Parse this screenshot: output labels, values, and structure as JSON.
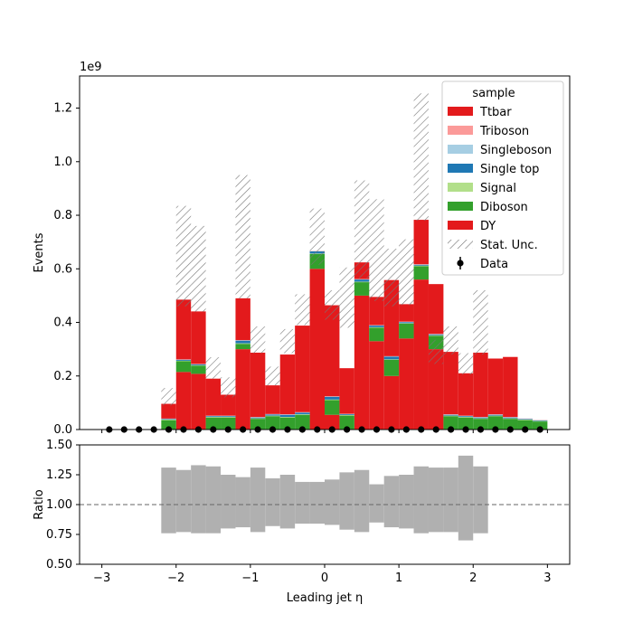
{
  "chart_data": [
    {
      "type": "bar",
      "stacked": true,
      "xlabel": "Leading jet  η",
      "ylabel": "Events",
      "offset_text": "1e9",
      "xlim": [
        -3.3,
        3.3
      ],
      "ylim": [
        0,
        1.32
      ],
      "y_scale_factor": 1000000000,
      "x_ticks": [
        -3,
        -2,
        -1,
        0,
        1,
        2,
        3
      ],
      "x_tick_labels": [
        "−3",
        "−2",
        "−1",
        "0",
        "1",
        "2",
        "3"
      ],
      "y_ticks": [
        0.0,
        0.2,
        0.4,
        0.6,
        0.8,
        1.0,
        1.2
      ],
      "y_tick_labels": [
        "0.0",
        "0.2",
        "0.4",
        "0.6",
        "0.8",
        "1.0",
        "1.2"
      ],
      "bin_edges": [
        -3.0,
        -2.8,
        -2.6,
        -2.4,
        -2.2,
        -2.0,
        -1.8,
        -1.6,
        -1.4,
        -1.2,
        -1.0,
        -0.8,
        -0.6,
        -0.4,
        -0.2,
        0.0,
        0.2,
        0.4,
        0.6,
        0.8,
        1.0,
        1.2,
        1.4,
        1.6,
        1.8,
        2.0,
        2.2,
        2.4,
        2.6,
        2.8,
        3.0
      ],
      "series": [
        {
          "name": "DY",
          "color": "#e31a1c",
          "values": [
            0,
            0,
            0,
            0,
            0,
            0.215,
            0.208,
            0,
            0,
            0.3,
            0,
            0,
            0,
            0,
            0.6,
            0.055,
            0,
            0.5,
            0.33,
            0.2,
            0.34,
            0.56,
            0.3,
            0,
            0,
            0,
            0,
            0,
            0,
            0
          ]
        },
        {
          "name": "Diboson",
          "color": "#33a02c",
          "values": [
            0,
            0,
            0,
            0,
            0.035,
            0.04,
            0.03,
            0.045,
            0.045,
            0.02,
            0.04,
            0.05,
            0.045,
            0.055,
            0.055,
            0.055,
            0.052,
            0.05,
            0.05,
            0.06,
            0.055,
            0.05,
            0.05,
            0.05,
            0.045,
            0.04,
            0.05,
            0.04,
            0.035,
            0.03
          ]
        },
        {
          "name": "Signal",
          "color": "#b2df8a",
          "values": [
            0,
            0,
            0,
            0,
            0.002,
            0.002,
            0.002,
            0.002,
            0.002,
            0.002,
            0.002,
            0.002,
            0.002,
            0.002,
            0.002,
            0.002,
            0.002,
            0.002,
            0.002,
            0.002,
            0.002,
            0.002,
            0.002,
            0.002,
            0.002,
            0.002,
            0.002,
            0.002,
            0.002,
            0.002
          ]
        },
        {
          "name": "Single top",
          "color": "#1f78b4",
          "values": [
            0,
            0,
            0,
            0,
            0.002,
            0.003,
            0.003,
            0.003,
            0.003,
            0.01,
            0.003,
            0.004,
            0.008,
            0.006,
            0.008,
            0.01,
            0.003,
            0.008,
            0.006,
            0.01,
            0.004,
            0.003,
            0.003,
            0.003,
            0.003,
            0.003,
            0.003,
            0.003,
            0.002,
            0.002
          ]
        },
        {
          "name": "Singleboson",
          "color": "#a6cee3",
          "values": [
            0,
            0,
            0,
            0,
            0.001,
            0.001,
            0.001,
            0.001,
            0.001,
            0.001,
            0.001,
            0.001,
            0.001,
            0.001,
            0.001,
            0.001,
            0.001,
            0.001,
            0.001,
            0.001,
            0.001,
            0.001,
            0.001,
            0.001,
            0.001,
            0.001,
            0.001,
            0.001,
            0.001,
            0.001
          ]
        },
        {
          "name": "Triboson",
          "color": "#fb9a99",
          "values": [
            0,
            0,
            0,
            0,
            0.001,
            0.001,
            0.001,
            0.001,
            0.001,
            0.001,
            0.001,
            0.001,
            0.001,
            0.001,
            0.001,
            0.001,
            0.001,
            0.001,
            0.001,
            0.001,
            0.001,
            0.001,
            0.001,
            0.001,
            0.001,
            0.001,
            0.001,
            0.001,
            0.001,
            0.001
          ]
        },
        {
          "name": "Ttbar",
          "color": "#e31a1c",
          "values": [
            0,
            0,
            0,
            0,
            0.055,
            0.223,
            0.196,
            0.138,
            0.078,
            0.156,
            0.24,
            0.107,
            0.223,
            0.323,
            0.0,
            0.34,
            0.17,
            0.062,
            0.105,
            0.284,
            0.065,
            0.166,
            0.186,
            0.233,
            0.158,
            0.24,
            0.208,
            0.224,
            0,
            0
          ]
        }
      ],
      "stat_unc": {
        "name": "Stat. Unc.",
        "up": [
          0,
          0,
          0,
          0,
          0.155,
          0.835,
          0.76,
          0.27,
          0.195,
          0.95,
          0.385,
          0.235,
          0.375,
          0.505,
          0.825,
          0.52,
          0.605,
          0.93,
          0.86,
          0.675,
          0.71,
          1.255,
          0.335,
          0.385,
          0.285,
          0.52,
          0.26,
          0,
          0,
          0
        ],
        "down": [
          0,
          0,
          0,
          0,
          0.09,
          0.46,
          0.44,
          0.19,
          0.12,
          0.49,
          0.285,
          0.165,
          0.285,
          0.39,
          0.615,
          0.41,
          0.38,
          0.565,
          0.48,
          0.46,
          0.465,
          0.78,
          0.245,
          0.28,
          0.205,
          0.28,
          0.26,
          0,
          0,
          0
        ]
      },
      "data": {
        "name": "Data",
        "x": [
          -2.9,
          -2.7,
          -2.5,
          -2.3,
          -2.1,
          -1.9,
          -1.7,
          -1.5,
          -1.3,
          -1.1,
          -0.9,
          -0.7,
          -0.5,
          -0.3,
          -0.1,
          0.1,
          0.3,
          0.5,
          0.7,
          0.9,
          1.1,
          1.3,
          1.5,
          1.7,
          1.9,
          2.1,
          2.3,
          2.5,
          2.7,
          2.9
        ],
        "y": [
          0,
          0,
          0,
          0,
          0,
          0,
          0,
          0,
          0,
          0,
          0,
          0,
          0,
          0,
          0,
          0,
          0,
          0,
          0,
          0,
          0,
          0,
          0,
          0,
          0,
          0,
          0,
          0,
          0,
          0
        ]
      },
      "legend": {
        "title": "sample",
        "placement": "top-right",
        "entries": [
          "Ttbar",
          "Triboson",
          "Singleboson",
          "Single top",
          "Signal",
          "Diboson",
          "DY",
          "Stat. Unc.",
          "Data"
        ]
      }
    },
    {
      "type": "bar",
      "panel": "ratio",
      "ylabel": "Ratio",
      "xlabel": "Leading jet  η",
      "xlim": [
        -3.3,
        3.3
      ],
      "ylim": [
        0.5,
        1.5
      ],
      "y_ticks": [
        0.5,
        0.75,
        1.0,
        1.25,
        1.5
      ],
      "y_tick_labels": [
        "0.50",
        "0.75",
        "1.00",
        "1.25",
        "1.50"
      ],
      "reference_line": 1.0,
      "band_color": "#b0b0b0",
      "band_up": [
        0,
        0,
        0,
        0,
        1.31,
        1.29,
        1.33,
        1.32,
        1.25,
        1.23,
        1.31,
        1.22,
        1.25,
        1.19,
        1.19,
        1.21,
        1.27,
        1.29,
        1.17,
        1.24,
        1.25,
        1.32,
        1.31,
        1.31,
        1.41,
        1.32,
        0,
        0,
        0,
        0
      ],
      "band_down": [
        0,
        0,
        0,
        0,
        0.76,
        0.77,
        0.76,
        0.76,
        0.8,
        0.81,
        0.77,
        0.82,
        0.8,
        0.84,
        0.84,
        0.83,
        0.79,
        0.77,
        0.85,
        0.81,
        0.8,
        0.76,
        0.77,
        0.77,
        0.7,
        0.76,
        0,
        0,
        0,
        0
      ]
    }
  ]
}
